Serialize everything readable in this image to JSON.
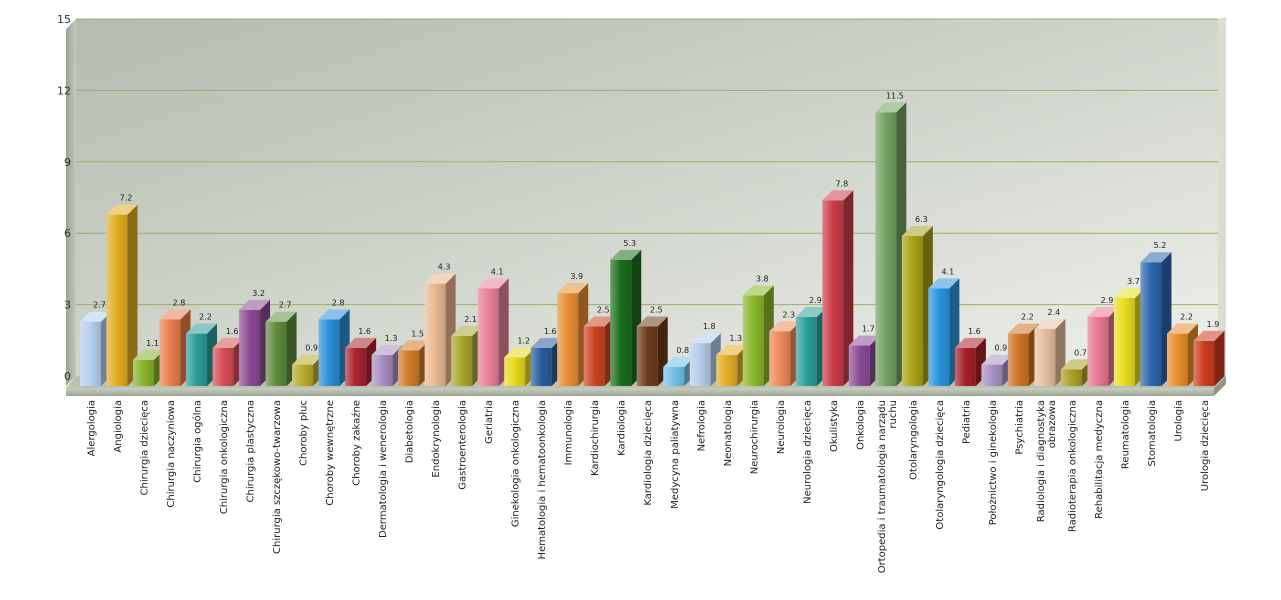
{
  "chart_data": {
    "type": "bar",
    "style": "3d-column",
    "ylim": [
      0,
      15
    ],
    "yticks": [
      0,
      3,
      6,
      9,
      12,
      15
    ],
    "grid": true,
    "legend": "none",
    "categories": [
      "Alergologia",
      "Angiologia",
      "Chirurgia dziecięca",
      "Chirurgia naczyniowa",
      "Chirurgia ogólna",
      "Chirurgia onkologiczna",
      "Chirurgia plastyczna",
      "Chirurgia szczękowo-twarzowa",
      "Choroby płuc",
      "Choroby wewnętrzne",
      "Choroby zakaźne",
      "Dermatologia i wenerologia",
      "Diabetologia",
      "Endokrynologia",
      "Gastroenterologia",
      "Geriatria",
      "Ginekologia onkologiczna",
      "Hematologia i hematoonkologia",
      "Immunologia",
      "Kardiochirurgia",
      "Kardiologia",
      "Kardiologia dziecięca",
      "Medycyna paliatywna",
      "Nefrologia",
      "Neonatologia",
      "Neurochirurgia",
      "Neurologia",
      "Neurologia dziecięca",
      "Okulistyka",
      "Onkologia",
      "Ortopedia i traumatologia narządu ruchu",
      "Otolaryngologia",
      "Otolaryngologia dziecięca",
      "Pediatria",
      "Położnictwo i ginekologia",
      "Psychiatria",
      "Radiologia i diagnostyka obrazowa",
      "Radioterapia onkologiczna",
      "Rehabilitacja medyczna",
      "Reumatologia",
      "Stomatologia",
      "Urologia",
      "Urologia dziecięca"
    ],
    "values": [
      2.7,
      7.2,
      1.1,
      2.8,
      2.2,
      1.6,
      3.2,
      2.7,
      0.9,
      2.8,
      1.6,
      1.3,
      1.5,
      4.3,
      2.1,
      4.1,
      1.2,
      1.6,
      3.9,
      2.5,
      5.3,
      2.5,
      0.8,
      1.8,
      1.3,
      3.8,
      2.3,
      2.9,
      7.8,
      1.7,
      11.5,
      6.3,
      4.1,
      1.6,
      0.9,
      2.2,
      2.4,
      0.7,
      2.9,
      3.7,
      5.2,
      2.2,
      1.9
    ],
    "labels": [
      "2.7",
      "7.2",
      "1.1",
      "2.8",
      "2.2",
      "1.6",
      "3.2",
      "2.7",
      "0.9",
      "2.8",
      "1.6",
      "1.3",
      "1.5",
      "4.3",
      "2.1",
      "4.1",
      "1.2",
      "1.6",
      "3.9",
      "2.5",
      "5.3",
      "2.5",
      "0.8",
      "1.8",
      "1.3",
      "3.8",
      "2.3",
      "2.9",
      "7.8",
      "1.7",
      "11.5",
      "6.3",
      "4.1",
      "1.6",
      "0.9",
      "2.2",
      "2.4",
      "0.7",
      "2.9",
      "3.7",
      "5.2",
      "2.2",
      "1.9"
    ],
    "colors": [
      "#b5d0ee",
      "#e2ad22",
      "#86b22c",
      "#e87e4c",
      "#2a9d95",
      "#d64d56",
      "#8b4a92",
      "#5f8b3e",
      "#b8aa2a",
      "#2a8ed6",
      "#a8242d",
      "#a88ec0",
      "#d27a28",
      "#ebb78e",
      "#a8a430",
      "#e88098",
      "#e6d81e",
      "#2a5c9c",
      "#e88e32",
      "#cc4422",
      "#1c6e1c",
      "#6e3c1c",
      "#72c2e8",
      "#b4cce8",
      "#e2ac28",
      "#8ab62a",
      "#ee8858",
      "#2aa098",
      "#cc3c48",
      "#8c4c96",
      "#72a060",
      "#a8a018",
      "#2a94de",
      "#a62028",
      "#a892c2",
      "#cc7424",
      "#e6be9e",
      "#a8a024",
      "#e67890",
      "#e8dc20",
      "#2c64ac",
      "#e88e2c",
      "#cc3c1e"
    ]
  }
}
